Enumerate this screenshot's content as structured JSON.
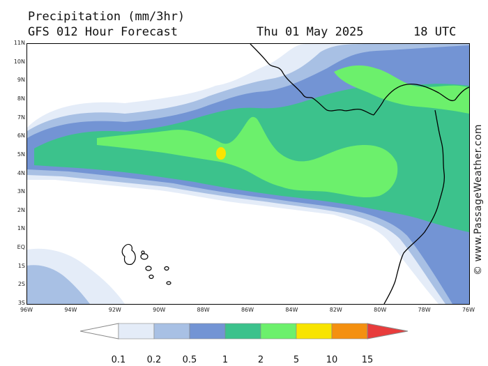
{
  "header": {
    "title": "Precipitation (mm/3hr)",
    "forecast": "GFS 012 Hour Forecast",
    "date": "Thu 01 May 2025",
    "time": "18 UTC"
  },
  "credit": "© www.PassageWeather.com",
  "lat_labels": [
    "11N",
    "10N",
    "9N",
    "8N",
    "7N",
    "6N",
    "5N",
    "4N",
    "3N",
    "2N",
    "1N",
    "EQ",
    "1S",
    "2S",
    "3S"
  ],
  "lon_labels": [
    "96W",
    "94W",
    "92W",
    "90W",
    "88W",
    "86W",
    "84W",
    "82W",
    "80W",
    "78W",
    "76W"
  ],
  "legend": {
    "values": [
      "0.1",
      "0.2",
      "0.5",
      "1",
      "2",
      "5",
      "10",
      "15"
    ],
    "colors": [
      "#ffffff",
      "#e4ecf8",
      "#a8c0e4",
      "#7394d4",
      "#3cc28c",
      "#6cf06c",
      "#f8e400",
      "#f49010",
      "#e83c3c"
    ]
  },
  "palette": {
    "light": "#e4ecf8",
    "pale_blue": "#a8c0e4",
    "blue": "#7394d4",
    "teal": "#3cc28c",
    "green": "#6cf06c",
    "yellow": "#f8e400",
    "coast": "#000000"
  }
}
